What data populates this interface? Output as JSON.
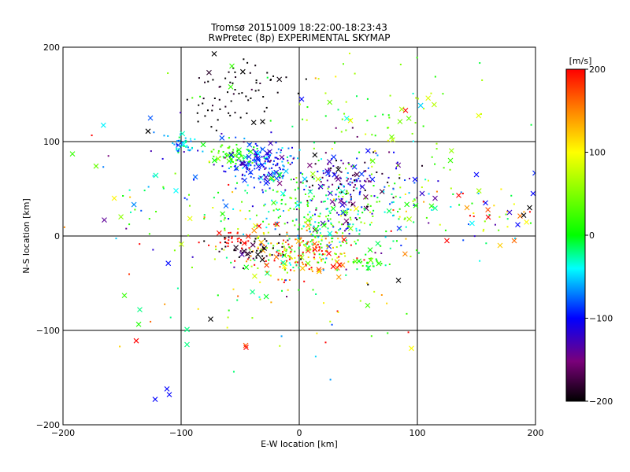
{
  "chart_data": {
    "type": "scatter",
    "title": "Tromsø 20151009 18:22:00-18:23:43",
    "subtitle": "RwPretec (8p) EXPERIMENTAL SKYMAP",
    "xlabel": "E-W location [km]",
    "ylabel": "N-S location [km]",
    "xlim": [
      -200,
      200
    ],
    "ylim": [
      -200,
      200
    ],
    "x_ticks": [
      -200,
      -100,
      0,
      100,
      200
    ],
    "y_ticks": [
      -200,
      -100,
      0,
      100,
      200
    ],
    "grid": true,
    "colorbar": {
      "label": "[m/s]",
      "min": -200,
      "max": 200,
      "ticks": [
        -200,
        -100,
        0,
        100,
        200
      ],
      "colormap": "rainbow (black-purple-blue-cyan-green-yellow-red)"
    },
    "point_markers": {
      "dot": "small point",
      "cross": "x"
    },
    "clusters": [
      {
        "cx": -97,
        "cy": 98,
        "sx": 6,
        "sy": 5,
        "n": 45,
        "v": -50,
        "vs": 25
      },
      {
        "cx": -60,
        "cy": 85,
        "sx": 9,
        "sy": 6,
        "n": 60,
        "v": 20,
        "vs": 20
      },
      {
        "cx": -30,
        "cy": 78,
        "sx": 14,
        "sy": 12,
        "n": 180,
        "v": -95,
        "vs": 30
      },
      {
        "cx": -50,
        "cy": 152,
        "sx": 25,
        "sy": 18,
        "n": 70,
        "v": -200,
        "vs": 10
      },
      {
        "cx": 40,
        "cy": 55,
        "sx": 22,
        "sy": 20,
        "n": 180,
        "v": -140,
        "vs": 40
      },
      {
        "cx": 15,
        "cy": 25,
        "sx": 45,
        "sy": 22,
        "n": 320,
        "v": 0,
        "vs": 45
      },
      {
        "cx": 60,
        "cy": 120,
        "sx": 50,
        "sy": 30,
        "n": 90,
        "v": 35,
        "vs": 40
      },
      {
        "cx": 0,
        "cy": -20,
        "sx": 25,
        "sy": 13,
        "n": 220,
        "v": 130,
        "vs": 80
      },
      {
        "cx": -55,
        "cy": -3,
        "sx": 7,
        "sy": 4,
        "n": 25,
        "v": 200,
        "vs": 10
      },
      {
        "cx": -35,
        "cy": -15,
        "sx": 15,
        "sy": 8,
        "n": 50,
        "v": -190,
        "vs": 15
      },
      {
        "cx": 60,
        "cy": -30,
        "sx": 8,
        "sy": 4,
        "n": 25,
        "v": 10,
        "vs": 20
      },
      {
        "cx": 150,
        "cy": 25,
        "sx": 40,
        "sy": 18,
        "n": 60,
        "v": 60,
        "vs": 110
      },
      {
        "cx": -110,
        "cy": 70,
        "sx": 50,
        "sy": 45,
        "n": 60,
        "v": -10,
        "vs": 100
      },
      {
        "cx": -80,
        "cy": -50,
        "sx": 50,
        "sy": 45,
        "n": 45,
        "v": 60,
        "vs": 110
      },
      {
        "cx": 40,
        "cy": -70,
        "sx": 40,
        "sy": 30,
        "n": 35,
        "v": 50,
        "vs": 100
      }
    ],
    "points": [
      {
        "x": -122,
        "y": -173,
        "v": -100,
        "m": "x"
      },
      {
        "x": -110,
        "y": -168,
        "v": -100,
        "m": "x"
      },
      {
        "x": -112,
        "y": -162,
        "v": -100,
        "m": "x"
      },
      {
        "x": -138,
        "y": -111,
        "v": 200,
        "m": "x"
      },
      {
        "x": -95,
        "y": -115,
        "v": -20,
        "m": "x"
      },
      {
        "x": -45,
        "y": -118,
        "v": 200,
        "m": "x"
      },
      {
        "x": -148,
        "y": -63,
        "v": 20,
        "m": "x"
      },
      {
        "x": -135,
        "y": -78,
        "v": -20,
        "m": "x"
      },
      {
        "x": -95,
        "y": -99,
        "v": -20,
        "m": "x"
      },
      {
        "x": -75,
        "y": -88,
        "v": -200,
        "m": "x"
      },
      {
        "x": -192,
        "y": 87,
        "v": 20,
        "m": "x"
      },
      {
        "x": -172,
        "y": 74,
        "v": 40,
        "m": "x"
      },
      {
        "x": -165,
        "y": 17,
        "v": -140,
        "m": "x"
      },
      {
        "x": -128,
        "y": 111,
        "v": -200,
        "m": "x"
      },
      {
        "x": -126,
        "y": 125,
        "v": -80,
        "m": "x"
      },
      {
        "x": -58,
        "y": 158,
        "v": 20,
        "m": "x"
      },
      {
        "x": -72,
        "y": 193,
        "v": -200,
        "m": "x"
      },
      {
        "x": -57,
        "y": 180,
        "v": 20,
        "m": "x"
      },
      {
        "x": 2,
        "y": 145,
        "v": -100,
        "m": "x"
      },
      {
        "x": 90,
        "y": 133,
        "v": 200,
        "m": "x"
      },
      {
        "x": 98,
        "y": 60,
        "v": -100,
        "m": "x"
      },
      {
        "x": 104,
        "y": 45,
        "v": -120,
        "m": "x"
      },
      {
        "x": 115,
        "y": 40,
        "v": -140,
        "m": "x"
      },
      {
        "x": 135,
        "y": 43,
        "v": 200,
        "m": "x"
      },
      {
        "x": 142,
        "y": 30,
        "v": 140,
        "m": "x"
      },
      {
        "x": 150,
        "y": 65,
        "v": -100,
        "m": "x"
      },
      {
        "x": 160,
        "y": 20,
        "v": 200,
        "m": "x"
      },
      {
        "x": 178,
        "y": 25,
        "v": -120,
        "m": "x"
      },
      {
        "x": 190,
        "y": 22,
        "v": -200,
        "m": "x"
      },
      {
        "x": 195,
        "y": 30,
        "v": -200,
        "m": "x"
      },
      {
        "x": 185,
        "y": 12,
        "v": -100,
        "m": "x"
      },
      {
        "x": 170,
        "y": -10,
        "v": 120,
        "m": "x"
      },
      {
        "x": 182,
        "y": -5,
        "v": 160,
        "m": "x"
      },
      {
        "x": 125,
        "y": -5,
        "v": 200,
        "m": "x"
      },
      {
        "x": 84,
        "y": -47,
        "v": -200,
        "m": "x"
      },
      {
        "x": 95,
        "y": -119,
        "v": 100,
        "m": "x"
      },
      {
        "x": 128,
        "y": 80,
        "v": 20,
        "m": "x"
      },
      {
        "x": 198,
        "y": 45,
        "v": -100,
        "m": "x"
      }
    ]
  }
}
